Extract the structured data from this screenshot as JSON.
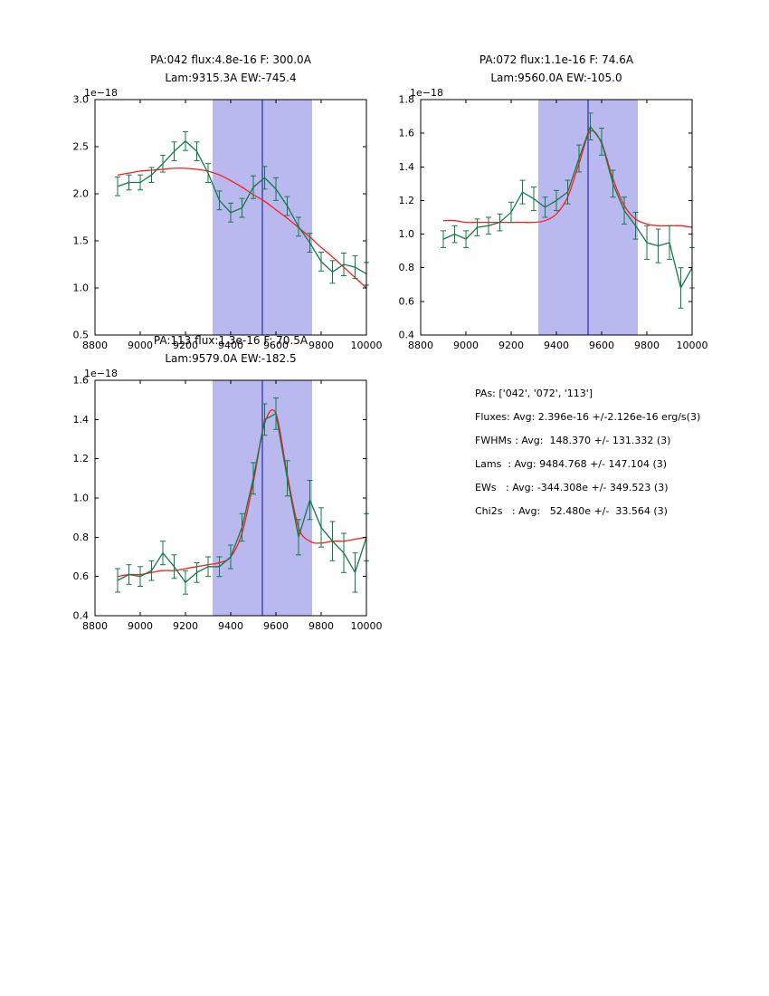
{
  "page": {
    "background": "#ffffff"
  },
  "colors": {
    "data": "#117a45",
    "fit": "#ff1a1a",
    "band": "#b9b9f0",
    "vline": "#2929b2",
    "axis": "#000000"
  },
  "summary": {
    "lines": [
      "PAs: ['042', '072', '113']",
      "Fluxes: Avg: 2.396e-16 +/-2.126e-16 erg/s(3)",
      "FWHMs : Avg:  148.370 +/- 131.332 (3)",
      "Lams  : Avg: 9484.768 +/- 147.104 (3)",
      "EWs   : Avg: -344.308e +/- 349.523 (3)",
      "Chi2s   : Avg:   52.480e +/-  33.564 (3)"
    ]
  },
  "chart_data": [
    {
      "type": "line",
      "title_line1": "PA:042 flux:4.8e-16 F: 300.0A",
      "title_line2": "Lam:9315.3A EW:-745.4",
      "offset_label": "1e−18",
      "xlabel": "",
      "ylabel": "",
      "xlim": [
        8800,
        10000
      ],
      "ylim": [
        0.5,
        3.0
      ],
      "xticks": [
        8800,
        9000,
        9200,
        9400,
        9600,
        9800,
        10000
      ],
      "yticks": [
        0.5,
        1.0,
        1.5,
        2.0,
        2.5,
        3.0
      ],
      "band_x": [
        9320,
        9760
      ],
      "vline_x": 9540,
      "grid": false,
      "legend": "none",
      "x": [
        8900,
        8950,
        9000,
        9050,
        9100,
        9150,
        9200,
        9250,
        9300,
        9350,
        9400,
        9450,
        9500,
        9550,
        9600,
        9650,
        9700,
        9750,
        9800,
        9850,
        9900,
        9950,
        10000
      ],
      "series": [
        {
          "name": "data",
          "color_key": "data",
          "values": [
            2.08,
            2.12,
            2.12,
            2.2,
            2.32,
            2.45,
            2.56,
            2.45,
            2.22,
            1.93,
            1.8,
            1.85,
            2.07,
            2.17,
            2.05,
            1.87,
            1.65,
            1.48,
            1.28,
            1.17,
            1.25,
            1.22,
            1.15
          ],
          "errors": [
            0.1,
            0.08,
            0.08,
            0.08,
            0.09,
            0.1,
            0.1,
            0.1,
            0.1,
            0.1,
            0.1,
            0.1,
            0.12,
            0.12,
            0.12,
            0.1,
            0.1,
            0.1,
            0.1,
            0.12,
            0.12,
            0.12,
            0.12
          ]
        },
        {
          "name": "fit",
          "color_key": "fit",
          "values": [
            2.2,
            2.22,
            2.24,
            2.25,
            2.26,
            2.27,
            2.27,
            2.26,
            2.24,
            2.2,
            2.14,
            2.07,
            1.99,
            1.92,
            1.83,
            1.74,
            1.64,
            1.54,
            1.43,
            1.33,
            1.22,
            1.11,
            1.0
          ]
        }
      ]
    },
    {
      "type": "line",
      "title_line1": "PA:072 flux:1.1e-16 F: 74.6A",
      "title_line2": "Lam:9560.0A EW:-105.0",
      "offset_label": "1e−18",
      "xlabel": "",
      "ylabel": "",
      "xlim": [
        8800,
        10000
      ],
      "ylim": [
        0.4,
        1.8
      ],
      "xticks": [
        8800,
        9000,
        9200,
        9400,
        9600,
        9800,
        10000
      ],
      "yticks": [
        0.4,
        0.6,
        0.8,
        1.0,
        1.2,
        1.4,
        1.6,
        1.8
      ],
      "band_x": [
        9320,
        9760
      ],
      "vline_x": 9540,
      "grid": false,
      "legend": "none",
      "x": [
        8900,
        8950,
        9000,
        9050,
        9100,
        9150,
        9200,
        9250,
        9300,
        9350,
        9400,
        9450,
        9500,
        9550,
        9600,
        9650,
        9700,
        9750,
        9800,
        9850,
        9900,
        9950,
        10000
      ],
      "series": [
        {
          "name": "data",
          "color_key": "data",
          "values": [
            0.97,
            1.0,
            0.97,
            1.04,
            1.05,
            1.07,
            1.13,
            1.25,
            1.21,
            1.16,
            1.2,
            1.25,
            1.45,
            1.64,
            1.55,
            1.3,
            1.14,
            1.05,
            0.95,
            0.93,
            0.95,
            0.68,
            0.8
          ],
          "errors": [
            0.05,
            0.05,
            0.05,
            0.05,
            0.05,
            0.05,
            0.06,
            0.07,
            0.07,
            0.06,
            0.06,
            0.07,
            0.08,
            0.08,
            0.08,
            0.08,
            0.08,
            0.08,
            0.1,
            0.1,
            0.1,
            0.12,
            0.12
          ]
        },
        {
          "name": "fit",
          "color_key": "fit",
          "values": [
            1.08,
            1.08,
            1.07,
            1.07,
            1.07,
            1.07,
            1.07,
            1.07,
            1.07,
            1.08,
            1.12,
            1.22,
            1.42,
            1.61,
            1.54,
            1.33,
            1.17,
            1.09,
            1.06,
            1.05,
            1.05,
            1.05,
            1.04
          ]
        }
      ]
    },
    {
      "type": "line",
      "title_line1": "PA:113 flux:1.3e-16 F: 70.5A",
      "title_line2": "Lam:9579.0A EW:-182.5",
      "offset_label": "1e−18",
      "xlabel": "",
      "ylabel": "",
      "xlim": [
        8800,
        10000
      ],
      "ylim": [
        0.4,
        1.6
      ],
      "xticks": [
        8800,
        9000,
        9200,
        9400,
        9600,
        9800,
        10000
      ],
      "yticks": [
        0.4,
        0.6,
        0.8,
        1.0,
        1.2,
        1.4,
        1.6
      ],
      "band_x": [
        9320,
        9760
      ],
      "vline_x": 9540,
      "grid": false,
      "legend": "none",
      "x": [
        8900,
        8950,
        9000,
        9050,
        9100,
        9150,
        9200,
        9250,
        9300,
        9350,
        9400,
        9450,
        9500,
        9550,
        9600,
        9650,
        9700,
        9750,
        9800,
        9850,
        9900,
        9950,
        10000
      ],
      "series": [
        {
          "name": "data",
          "color_key": "data",
          "values": [
            0.58,
            0.61,
            0.6,
            0.63,
            0.72,
            0.65,
            0.57,
            0.62,
            0.65,
            0.65,
            0.7,
            0.85,
            1.1,
            1.4,
            1.43,
            1.1,
            0.8,
            0.99,
            0.85,
            0.78,
            0.72,
            0.62,
            0.8
          ],
          "errors": [
            0.06,
            0.05,
            0.05,
            0.05,
            0.06,
            0.06,
            0.06,
            0.05,
            0.05,
            0.05,
            0.06,
            0.07,
            0.08,
            0.08,
            0.08,
            0.09,
            0.09,
            0.1,
            0.1,
            0.1,
            0.1,
            0.1,
            0.12
          ]
        },
        {
          "name": "fit",
          "color_key": "fit",
          "values": [
            0.6,
            0.61,
            0.61,
            0.62,
            0.63,
            0.63,
            0.64,
            0.65,
            0.66,
            0.67,
            0.7,
            0.82,
            1.08,
            1.38,
            1.43,
            1.12,
            0.85,
            0.78,
            0.77,
            0.78,
            0.78,
            0.79,
            0.8
          ]
        }
      ]
    }
  ]
}
